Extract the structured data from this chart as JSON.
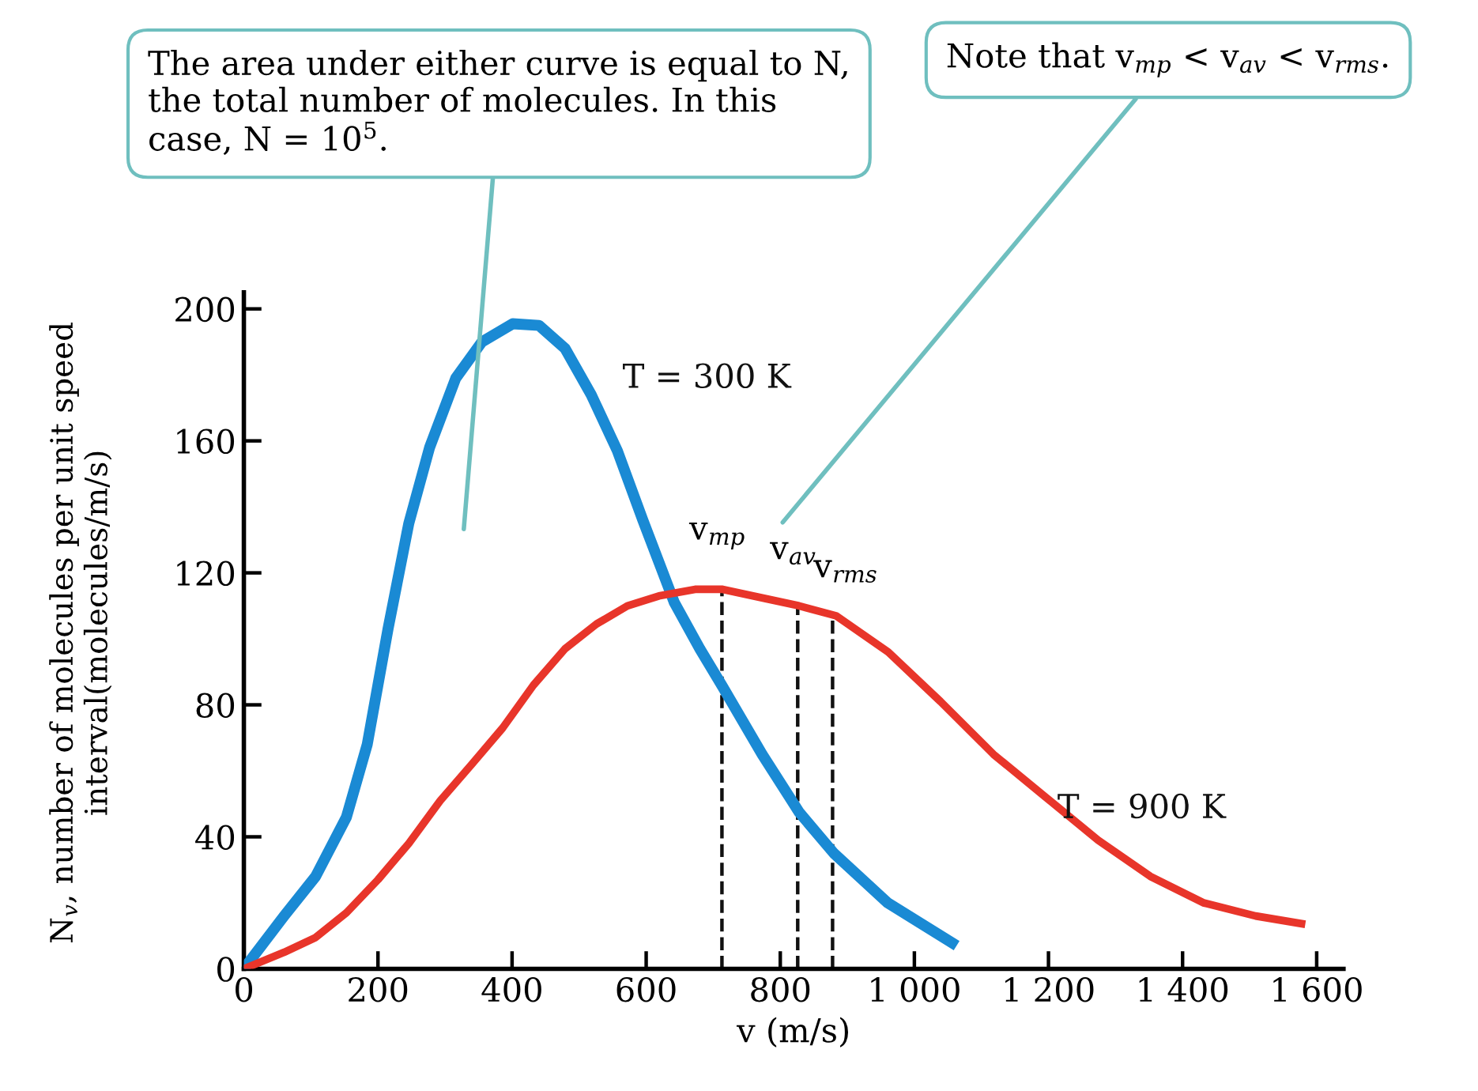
{
  "chart_data": {
    "type": "line",
    "xlabel": "v (m/s)",
    "ylabel": "N$_{v}$, number of molecules per unit speed interval(molecules/m/s)",
    "xlim": [
      0,
      1640
    ],
    "ylim": [
      0,
      205
    ],
    "xticks": [
      0,
      200,
      400,
      600,
      800,
      {
        "value": 1000,
        "label": "1 000"
      },
      {
        "value": 1200,
        "label": "1 200"
      },
      {
        "value": 1400,
        "label": "1 400"
      },
      {
        "value": 1600,
        "label": "1 600"
      }
    ],
    "yticks": [
      0,
      40,
      80,
      120,
      160,
      200
    ],
    "grid": false,
    "legend": false,
    "marker": "none",
    "line_style": "solid",
    "series": [
      {
        "name": "T = 300 K",
        "color": "#1a8ad4",
        "x": [
          0,
          60,
          107,
          153,
          184,
          215,
          246,
          277,
          316,
          355,
          401,
          440,
          479,
          518,
          557,
          595,
          642,
          680,
          714,
          773,
          828,
          880,
          960,
          1063
        ],
        "values": [
          0,
          16,
          28,
          46,
          68,
          103,
          135,
          158,
          179,
          190,
          195.5,
          195,
          188,
          174,
          157,
          136,
          111,
          97,
          85.5,
          65,
          47.5,
          35,
          20,
          7
        ]
      },
      {
        "name": "T = 900 K",
        "color": "#e8352a",
        "x": [
          0,
          60,
          107,
          153,
          200,
          246,
          293,
          340,
          386,
          432,
          479,
          526,
          572,
          619,
          673,
          714,
          828,
          883,
          961,
          1039,
          1118,
          1196,
          1274,
          1352,
          1431,
          1509,
          1583
        ],
        "values": [
          0,
          5,
          9.5,
          17,
          27,
          38,
          51,
          62,
          73,
          86,
          97,
          104.5,
          110,
          113,
          115,
          115,
          110,
          107,
          96,
          81,
          65,
          52,
          39,
          28,
          20,
          16,
          13.5
        ]
      }
    ],
    "ref_lines": [
      {
        "axis": "x",
        "value": 713,
        "label": "v$_{mp}$",
        "line_style": "dashed",
        "color": "#111111"
      },
      {
        "axis": "x",
        "value": 826,
        "label": "v$_{av}$",
        "line_style": "dashed",
        "color": "#111111"
      },
      {
        "axis": "x",
        "value": 878,
        "label": "v$_{rms}$",
        "line_style": "dashed",
        "color": "#111111"
      }
    ],
    "annotations": [
      "The area under either curve is equal to N, the total number of molecules. In this case, N = 10$^{5}$.",
      "Note that v$_{mp}$ < v$_{av}$ < v$_{rms}$."
    ]
  }
}
